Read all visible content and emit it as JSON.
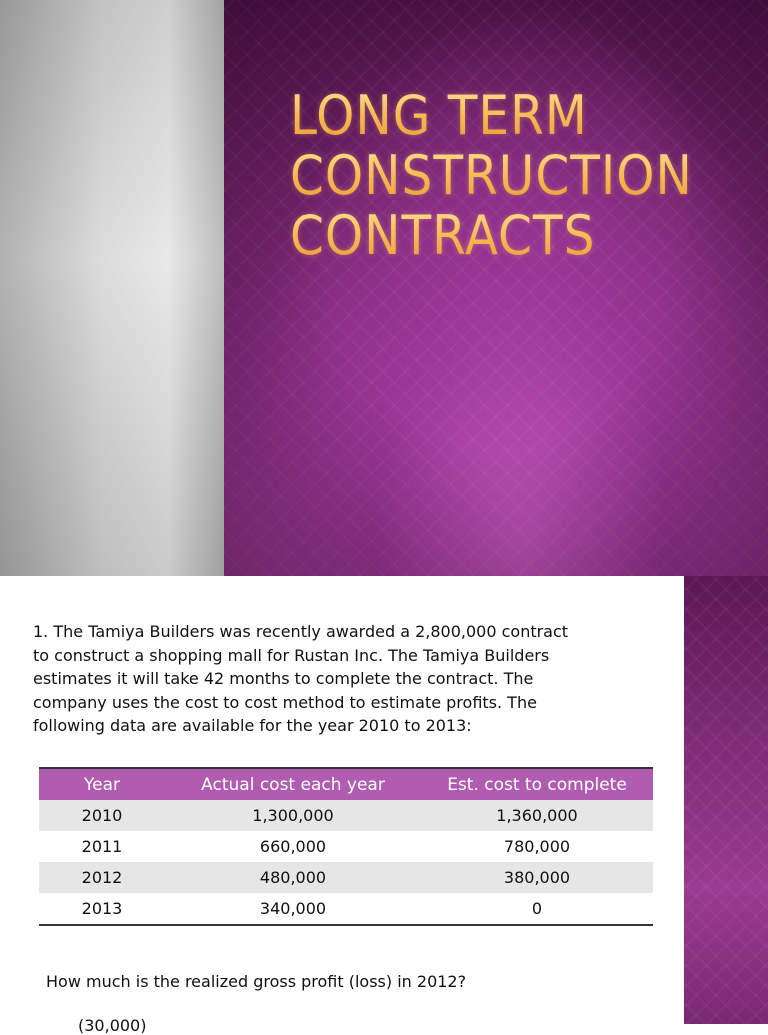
{
  "slide1": {
    "title_lines": [
      "LONG TERM",
      "CONSTRUCTION",
      "CONTRACTS"
    ]
  },
  "slide2": {
    "paragraph_lines": [
      "1. The Tamiya Builders was recently awarded a 2,800,000 contract",
      "to construct a shopping mall for Rustan Inc. The Tamiya Builders",
      "estimates it will take 42 months to complete the contract. The",
      "company uses the cost to cost method to estimate profits. The",
      "following data are available for the year 2010 to 2013:"
    ],
    "table": {
      "headers": [
        "Year",
        "Actual cost each year",
        "Est. cost to complete"
      ],
      "rows": [
        [
          "2010",
          "1,300,000",
          "1,360,000"
        ],
        [
          "2011",
          "660,000",
          "780,000"
        ],
        [
          "2012",
          "480,000",
          "380,000"
        ],
        [
          "2013",
          "340,000",
          "0"
        ]
      ]
    },
    "question": "How much is the realized gross profit (loss) in 2012?",
    "answer_partial": "(30,000)"
  },
  "colors": {
    "title_gold": "#f3b24a",
    "purple_bg": "#8f3089",
    "table_header": "#b05cb0",
    "row_stripe": "#e6e6e6"
  }
}
